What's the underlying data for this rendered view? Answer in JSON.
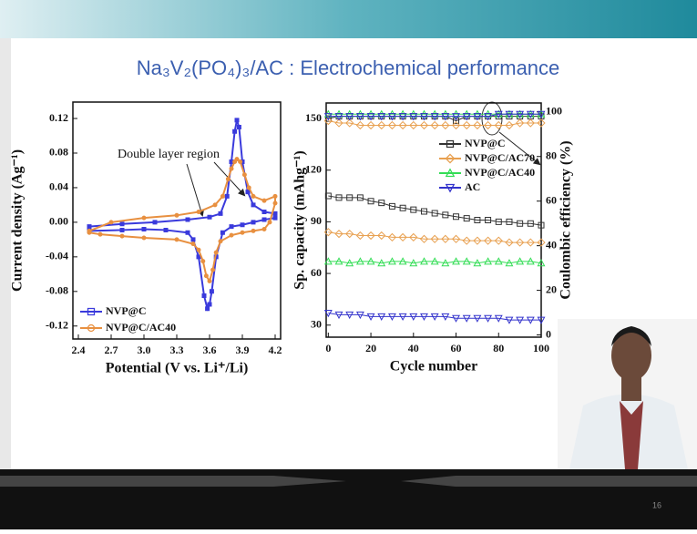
{
  "slide": {
    "title": "Na₃V₂(PO₄)₃/AC : Electrochemical performance",
    "page_number": "16"
  },
  "chart_data": [
    {
      "type": "line",
      "xlabel": "Potential (V vs. Li⁺/Li)",
      "ylabel": "Current density (Ag⁻¹)",
      "annotation": "Double layer region",
      "legend": "lower left",
      "xlim": [
        2.35,
        4.25
      ],
      "xticks": [
        2.4,
        2.7,
        {
          "value": 3,
          "label": "3.0"
        },
        3.3,
        3.6,
        3.9,
        4.2
      ],
      "ylim": [
        -0.135,
        0.139
      ],
      "yticks": [
        -0.12,
        -0.08,
        -0.04,
        {
          "value": 0,
          "label": "0.00"
        },
        0.04,
        0.08,
        0.12
      ],
      "series": [
        {
          "name": "NVP@C",
          "color": "#3a3adc",
          "marker": "square",
          "x": [
            2.5,
            2.8,
            3.1,
            3.4,
            3.6,
            3.7,
            3.76,
            3.8,
            3.83,
            3.85,
            3.87,
            3.9,
            3.95,
            4.0,
            4.1,
            4.2,
            4.2,
            4.1,
            4.0,
            3.9,
            3.8,
            3.72,
            3.66,
            3.62,
            3.6,
            3.58,
            3.55,
            3.5,
            3.45,
            3.4,
            3.2,
            3.0,
            2.8,
            2.5
          ],
          "values": [
            -0.005,
            -0.002,
            0.0,
            0.003,
            0.006,
            0.01,
            0.03,
            0.07,
            0.105,
            0.118,
            0.11,
            0.07,
            0.035,
            0.02,
            0.012,
            0.01,
            0.005,
            0.003,
            0.0,
            -0.003,
            -0.005,
            -0.012,
            -0.04,
            -0.08,
            -0.095,
            -0.1,
            -0.085,
            -0.04,
            -0.02,
            -0.012,
            -0.009,
            -0.008,
            -0.009,
            -0.01
          ]
        },
        {
          "name": "NVP@C/AC40",
          "color": "#e89040",
          "marker": "circle",
          "x": [
            2.5,
            2.7,
            3.0,
            3.3,
            3.5,
            3.65,
            3.72,
            3.77,
            3.8,
            3.83,
            3.85,
            3.88,
            3.92,
            3.96,
            4.0,
            4.1,
            4.2,
            4.2,
            4.15,
            4.1,
            4.0,
            3.9,
            3.8,
            3.7,
            3.66,
            3.63,
            3.6,
            3.57,
            3.54,
            3.5,
            3.45,
            3.3,
            3.0,
            2.8,
            2.6,
            2.5
          ],
          "values": [
            -0.01,
            0.0,
            0.005,
            0.008,
            0.012,
            0.02,
            0.03,
            0.05,
            0.062,
            0.07,
            0.073,
            0.07,
            0.055,
            0.04,
            0.03,
            0.025,
            0.03,
            0.022,
            0.0,
            -0.008,
            -0.01,
            -0.012,
            -0.015,
            -0.022,
            -0.035,
            -0.055,
            -0.068,
            -0.062,
            -0.045,
            -0.032,
            -0.025,
            -0.02,
            -0.018,
            -0.016,
            -0.014,
            -0.012
          ]
        }
      ]
    },
    {
      "type": "line",
      "xlabel": "Cycle number",
      "ylabel": "Sp. capacity (mAhg⁻¹)",
      "y2label": "Coulombic efficiency (%)",
      "legend": "center right",
      "x": [
        0,
        5,
        10,
        15,
        20,
        25,
        30,
        35,
        40,
        45,
        50,
        55,
        60,
        65,
        70,
        75,
        80,
        85,
        90,
        95,
        100
      ],
      "xlim": [
        -1,
        100
      ],
      "xticks": [
        0,
        20,
        40,
        60,
        80,
        100
      ],
      "ylim": [
        23,
        159
      ],
      "yticks": [
        30,
        60,
        90,
        120,
        150
      ],
      "y2lim": [
        -1,
        104
      ],
      "y2ticks": [
        0,
        20,
        40,
        60,
        80,
        100
      ],
      "series": [
        {
          "name": "NVP@C",
          "color": "#333333",
          "marker": "square",
          "values": [
            105,
            104,
            104,
            104,
            102,
            101,
            99,
            98,
            97,
            96,
            95,
            94,
            93,
            92,
            91,
            91,
            90,
            90,
            89,
            89,
            88
          ]
        },
        {
          "name": "NVP@C/AC70",
          "color": "#e8a050",
          "marker": "diamond",
          "values": [
            84,
            83,
            83,
            82,
            82,
            82,
            81,
            81,
            81,
            80,
            80,
            80,
            80,
            79,
            79,
            79,
            79,
            78,
            78,
            78,
            78
          ]
        },
        {
          "name": "NVP@C/AC40",
          "color": "#33dd55",
          "marker": "triangle",
          "values": [
            67,
            67,
            66,
            67,
            67,
            66,
            67,
            67,
            66,
            67,
            67,
            66,
            67,
            67,
            66,
            67,
            67,
            66,
            67,
            67,
            66
          ]
        },
        {
          "name": "AC",
          "color": "#3333cc",
          "marker": "triangle-down",
          "values": [
            37,
            36,
            36,
            36,
            35,
            35,
            35,
            35,
            35,
            35,
            35,
            35,
            34,
            34,
            34,
            34,
            34,
            33,
            33,
            33,
            33
          ]
        },
        {
          "color": "#333333",
          "marker": "square",
          "axis": "y2",
          "values": [
            97,
            98,
            98,
            98,
            98,
            98,
            98,
            98,
            98,
            98,
            98,
            98,
            96,
            98,
            98,
            98,
            98,
            98,
            98,
            98,
            98
          ]
        },
        {
          "color": "#e8a050",
          "marker": "diamond",
          "axis": "y2",
          "values": [
            96,
            95,
            95,
            94,
            94,
            94,
            94,
            94,
            94,
            94,
            94,
            94,
            94,
            94,
            94,
            94,
            94,
            94,
            95,
            95,
            95
          ]
        },
        {
          "color": "#33dd55",
          "marker": "triangle",
          "axis": "y2",
          "values": [
            99,
            99,
            99,
            99,
            99,
            99,
            99,
            99,
            99,
            99,
            99,
            99,
            99,
            99,
            99,
            99,
            99,
            99,
            99,
            99,
            99
          ]
        },
        {
          "color": "#3333cc",
          "marker": "triangle-down",
          "axis": "y2",
          "values": [
            98,
            98,
            98,
            98,
            98,
            98,
            98,
            98,
            98,
            98,
            98,
            98,
            98,
            98,
            98,
            98,
            99,
            99,
            99,
            99,
            99
          ]
        }
      ]
    }
  ]
}
